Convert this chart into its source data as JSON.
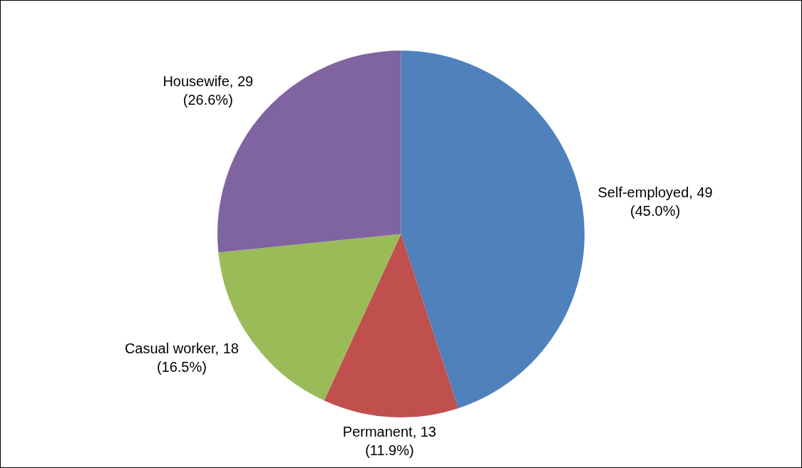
{
  "chart_data": {
    "type": "pie",
    "categories": [
      "Self-employed",
      "Permanent",
      "Casual worker",
      "Housewife"
    ],
    "values": [
      49,
      13,
      18,
      29
    ],
    "colors": [
      "#4f81bd",
      "#c0504d",
      "#9bbb59",
      "#8064a2"
    ],
    "value_labels": [
      "49\n(45.0%)",
      "13\n(11.9%)",
      "18\n(16.5%)",
      "29\n(26.6%)"
    ],
    "legend": false
  }
}
